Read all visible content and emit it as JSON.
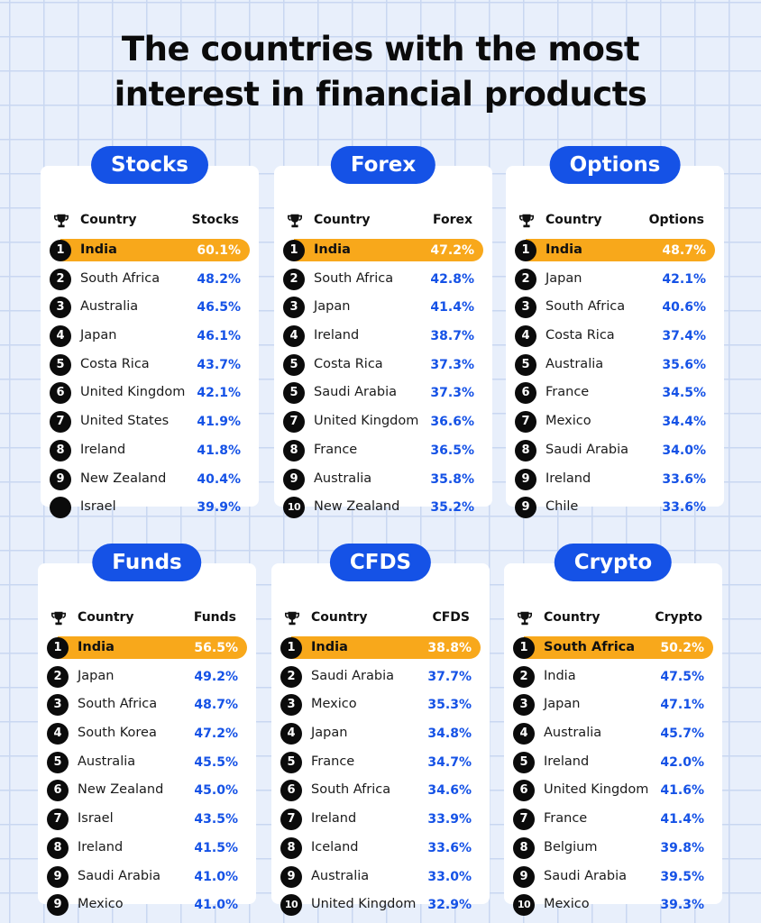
{
  "title": {
    "line1": "The countries with the most",
    "line2": "interest in financial products"
  },
  "colors": {
    "accent_blue": "#1552e6",
    "highlight_orange": "#f8a81b",
    "background": "#e8effb"
  },
  "icons": {
    "header_icon": "trophy-icon",
    "rank_badge": "number-circle-icon"
  },
  "header_country": "Country",
  "panels": [
    {
      "title": "Stocks",
      "metric": "Stocks",
      "rows": [
        {
          "rank": "1",
          "country": "India",
          "value": "60.1%"
        },
        {
          "rank": "2",
          "country": "South Africa",
          "value": "48.2%"
        },
        {
          "rank": "3",
          "country": "Australia",
          "value": "46.5%"
        },
        {
          "rank": "4",
          "country": "Japan",
          "value": "46.1%"
        },
        {
          "rank": "5",
          "country": "Costa Rica",
          "value": "43.7%"
        },
        {
          "rank": "6",
          "country": "United Kingdom",
          "value": "42.1%"
        },
        {
          "rank": "7",
          "country": "United States",
          "value": "41.9%"
        },
        {
          "rank": "8",
          "country": "Ireland",
          "value": "41.8%"
        },
        {
          "rank": "9",
          "country": "New Zealand",
          "value": "40.4%"
        },
        {
          "rank": "",
          "country": "Israel",
          "value": "39.9%"
        }
      ]
    },
    {
      "title": "Forex",
      "metric": "Forex",
      "rows": [
        {
          "rank": "1",
          "country": "India",
          "value": "47.2%"
        },
        {
          "rank": "2",
          "country": "South Africa",
          "value": "42.8%"
        },
        {
          "rank": "3",
          "country": "Japan",
          "value": "41.4%"
        },
        {
          "rank": "4",
          "country": "Ireland",
          "value": "38.7%"
        },
        {
          "rank": "5",
          "country": "Costa Rica",
          "value": "37.3%"
        },
        {
          "rank": "5",
          "country": "Saudi Arabia",
          "value": "37.3%"
        },
        {
          "rank": "7",
          "country": "United Kingdom",
          "value": "36.6%"
        },
        {
          "rank": "8",
          "country": "France",
          "value": "36.5%"
        },
        {
          "rank": "9",
          "country": "Australia",
          "value": "35.8%"
        },
        {
          "rank": "10",
          "country": "New Zealand",
          "value": "35.2%"
        }
      ]
    },
    {
      "title": "Options",
      "metric": "Options",
      "rows": [
        {
          "rank": "1",
          "country": "India",
          "value": "48.7%"
        },
        {
          "rank": "2",
          "country": "Japan",
          "value": "42.1%"
        },
        {
          "rank": "3",
          "country": "South Africa",
          "value": "40.6%"
        },
        {
          "rank": "4",
          "country": "Costa Rica",
          "value": "37.4%"
        },
        {
          "rank": "5",
          "country": "Australia",
          "value": "35.6%"
        },
        {
          "rank": "6",
          "country": "France",
          "value": "34.5%"
        },
        {
          "rank": "7",
          "country": "Mexico",
          "value": "34.4%"
        },
        {
          "rank": "8",
          "country": "Saudi Arabia",
          "value": "34.0%"
        },
        {
          "rank": "9",
          "country": "Ireland",
          "value": "33.6%"
        },
        {
          "rank": "9",
          "country": "Chile",
          "value": "33.6%"
        }
      ]
    },
    {
      "title": "Funds",
      "metric": "Funds",
      "rows": [
        {
          "rank": "1",
          "country": "India",
          "value": "56.5%"
        },
        {
          "rank": "2",
          "country": "Japan",
          "value": "49.2%"
        },
        {
          "rank": "3",
          "country": "South Africa",
          "value": "48.7%"
        },
        {
          "rank": "4",
          "country": "South Korea",
          "value": "47.2%"
        },
        {
          "rank": "5",
          "country": "Australia",
          "value": "45.5%"
        },
        {
          "rank": "6",
          "country": "New Zealand",
          "value": "45.0%"
        },
        {
          "rank": "7",
          "country": "Israel",
          "value": "43.5%"
        },
        {
          "rank": "8",
          "country": "Ireland",
          "value": "41.5%"
        },
        {
          "rank": "9",
          "country": "Saudi Arabia",
          "value": "41.0%"
        },
        {
          "rank": "9",
          "country": "Mexico",
          "value": "41.0%"
        }
      ]
    },
    {
      "title": "CFDS",
      "metric": "CFDS",
      "rows": [
        {
          "rank": "1",
          "country": "India",
          "value": "38.8%"
        },
        {
          "rank": "2",
          "country": "Saudi Arabia",
          "value": "37.7%"
        },
        {
          "rank": "3",
          "country": "Mexico",
          "value": "35.3%"
        },
        {
          "rank": "4",
          "country": "Japan",
          "value": "34.8%"
        },
        {
          "rank": "5",
          "country": "France",
          "value": "34.7%"
        },
        {
          "rank": "6",
          "country": "South Africa",
          "value": "34.6%"
        },
        {
          "rank": "7",
          "country": "Ireland",
          "value": "33.9%"
        },
        {
          "rank": "8",
          "country": "Iceland",
          "value": "33.6%"
        },
        {
          "rank": "9",
          "country": "Australia",
          "value": "33.0%"
        },
        {
          "rank": "10",
          "country": "United Kingdom",
          "value": "32.9%"
        }
      ]
    },
    {
      "title": "Crypto",
      "metric": "Crypto",
      "rows": [
        {
          "rank": "1",
          "country": "South Africa",
          "value": "50.2%"
        },
        {
          "rank": "2",
          "country": "India",
          "value": "47.5%"
        },
        {
          "rank": "3",
          "country": "Japan",
          "value": "47.1%"
        },
        {
          "rank": "4",
          "country": "Australia",
          "value": "45.7%"
        },
        {
          "rank": "5",
          "country": "Ireland",
          "value": "42.0%"
        },
        {
          "rank": "6",
          "country": "United Kingdom",
          "value": "41.6%"
        },
        {
          "rank": "7",
          "country": "France",
          "value": "41.4%"
        },
        {
          "rank": "8",
          "country": "Belgium",
          "value": "39.8%"
        },
        {
          "rank": "9",
          "country": "Saudi Arabia",
          "value": "39.5%"
        },
        {
          "rank": "10",
          "country": "Mexico",
          "value": "39.3%"
        }
      ]
    }
  ]
}
